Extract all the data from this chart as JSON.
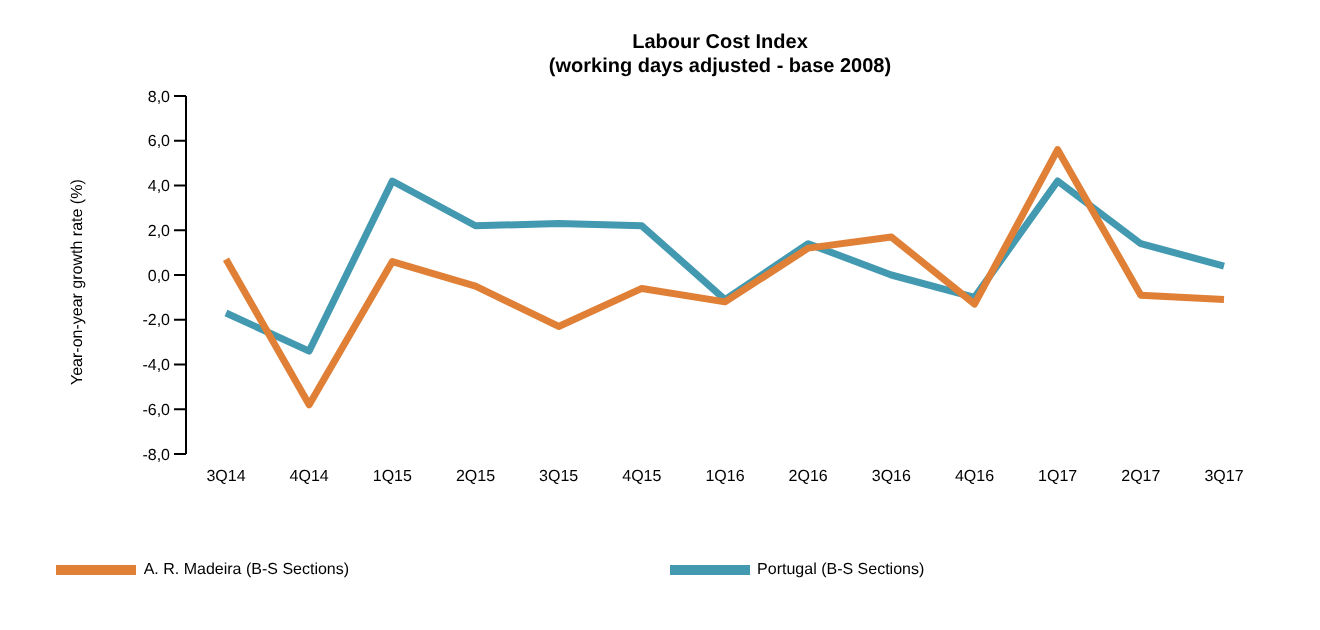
{
  "chart_data": {
    "type": "line",
    "title": "Labour Cost Index",
    "subtitle": "(working days adjusted - base 2008)",
    "ylabel": "Year-on-year growth rate (%)",
    "categories": [
      "3Q14",
      "4Q14",
      "1Q15",
      "2Q15",
      "3Q15",
      "4Q15",
      "1Q16",
      "2Q16",
      "3Q16",
      "4Q16",
      "1Q17",
      "2Q17",
      "3Q17"
    ],
    "series": [
      {
        "name": "Portugal (B-S Sections)",
        "color": "#4299b0",
        "values": [
          -1.7,
          -3.4,
          4.2,
          2.2,
          2.3,
          2.2,
          -1.1,
          1.4,
          0.0,
          -1.0,
          4.2,
          1.4,
          0.4
        ]
      },
      {
        "name": "A. R. Madeira (B-S Sections)",
        "color": "#e07f36",
        "values": [
          0.7,
          -5.8,
          0.6,
          -0.5,
          -2.3,
          -0.6,
          -1.2,
          1.2,
          1.7,
          -1.3,
          5.6,
          -0.9,
          -1.1
        ]
      }
    ],
    "ylim": [
      -8,
      8
    ],
    "yticks": [
      {
        "value": -8,
        "label": "-8,0"
      },
      {
        "value": -6,
        "label": "-6,0"
      },
      {
        "value": -4,
        "label": "-4,0"
      },
      {
        "value": -2,
        "label": "-2,0"
      },
      {
        "value": 0,
        "label": "0,0"
      },
      {
        "value": 2,
        "label": "2,0"
      },
      {
        "value": 4,
        "label": "4,0"
      },
      {
        "value": 6,
        "label": "6,0"
      },
      {
        "value": 8,
        "label": "8,0"
      }
    ],
    "grid": false,
    "legend": "bottom",
    "marker": "none",
    "line_style": "solid"
  }
}
